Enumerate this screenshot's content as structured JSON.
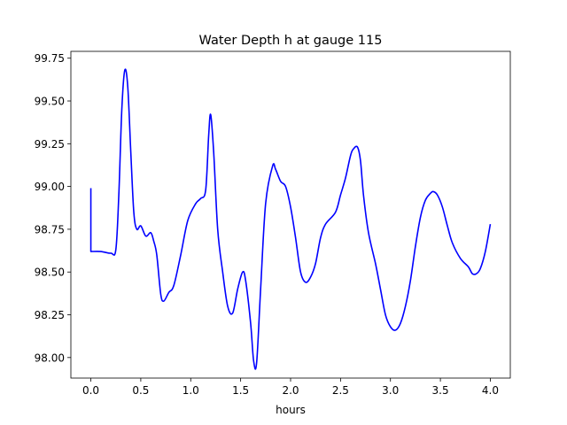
{
  "chart_data": {
    "type": "line",
    "title": "Water Depth h at gauge 115",
    "xlabel": "hours",
    "ylabel": "",
    "xlim": [
      -0.2,
      4.2
    ],
    "ylim": [
      97.88,
      99.79
    ],
    "x_ticks": [
      0.0,
      0.5,
      1.0,
      1.5,
      2.0,
      2.5,
      3.0,
      3.5,
      4.0
    ],
    "x_tick_labels": [
      "0.0",
      "0.5",
      "1.0",
      "1.5",
      "2.0",
      "2.5",
      "3.0",
      "3.5",
      "4.0"
    ],
    "y_ticks": [
      98.0,
      98.25,
      98.5,
      98.75,
      99.0,
      99.25,
      99.5,
      99.75
    ],
    "y_tick_labels": [
      "98.00",
      "98.25",
      "98.50",
      "98.75",
      "99.00",
      "99.25",
      "99.50",
      "99.75"
    ],
    "grid": false,
    "series": [
      {
        "color": "#0000ff",
        "x": [
          0,
          0,
          0.1,
          0.2,
          0.25,
          0.28,
          0.31,
          0.34,
          0.37,
          0.4,
          0.43,
          0.46,
          0.5,
          0.55,
          0.6,
          0.63,
          0.66,
          0.7,
          0.73,
          0.78,
          0.83,
          0.9,
          0.97,
          1.05,
          1.1,
          1.15,
          1.18,
          1.2,
          1.23,
          1.27,
          1.32,
          1.37,
          1.42,
          1.47,
          1.52,
          1.55,
          1.6,
          1.63,
          1.66,
          1.7,
          1.75,
          1.82,
          1.85,
          1.9,
          1.95,
          2.0,
          2.05,
          2.1,
          2.15,
          2.2,
          2.25,
          2.3,
          2.35,
          2.45,
          2.5,
          2.55,
          2.6,
          2.63,
          2.67,
          2.7,
          2.73,
          2.78,
          2.85,
          2.9,
          2.95,
          3.0,
          3.05,
          3.1,
          3.15,
          3.2,
          3.25,
          3.3,
          3.35,
          3.4,
          3.43,
          3.47,
          3.52,
          3.57,
          3.62,
          3.7,
          3.78,
          3.82,
          3.86,
          3.9,
          3.95,
          4.0
        ],
        "y": [
          98.99,
          98.62,
          98.62,
          98.61,
          98.63,
          98.95,
          99.45,
          99.68,
          99.58,
          99.2,
          98.85,
          98.75,
          98.77,
          98.71,
          98.73,
          98.68,
          98.6,
          98.37,
          98.33,
          98.38,
          98.42,
          98.6,
          98.8,
          98.9,
          98.93,
          98.98,
          99.3,
          99.42,
          99.2,
          98.75,
          98.5,
          98.3,
          98.26,
          98.4,
          98.5,
          98.45,
          98.2,
          97.98,
          97.97,
          98.4,
          98.9,
          99.12,
          99.1,
          99.03,
          99.0,
          98.88,
          98.7,
          98.5,
          98.44,
          98.47,
          98.55,
          98.7,
          98.78,
          98.85,
          98.95,
          99.05,
          99.18,
          99.22,
          99.23,
          99.15,
          98.95,
          98.73,
          98.55,
          98.4,
          98.25,
          98.18,
          98.16,
          98.2,
          98.3,
          98.45,
          98.65,
          98.82,
          98.92,
          98.96,
          98.97,
          98.95,
          98.88,
          98.77,
          98.67,
          98.58,
          98.53,
          98.49,
          98.49,
          98.52,
          98.62,
          98.78
        ]
      }
    ]
  }
}
